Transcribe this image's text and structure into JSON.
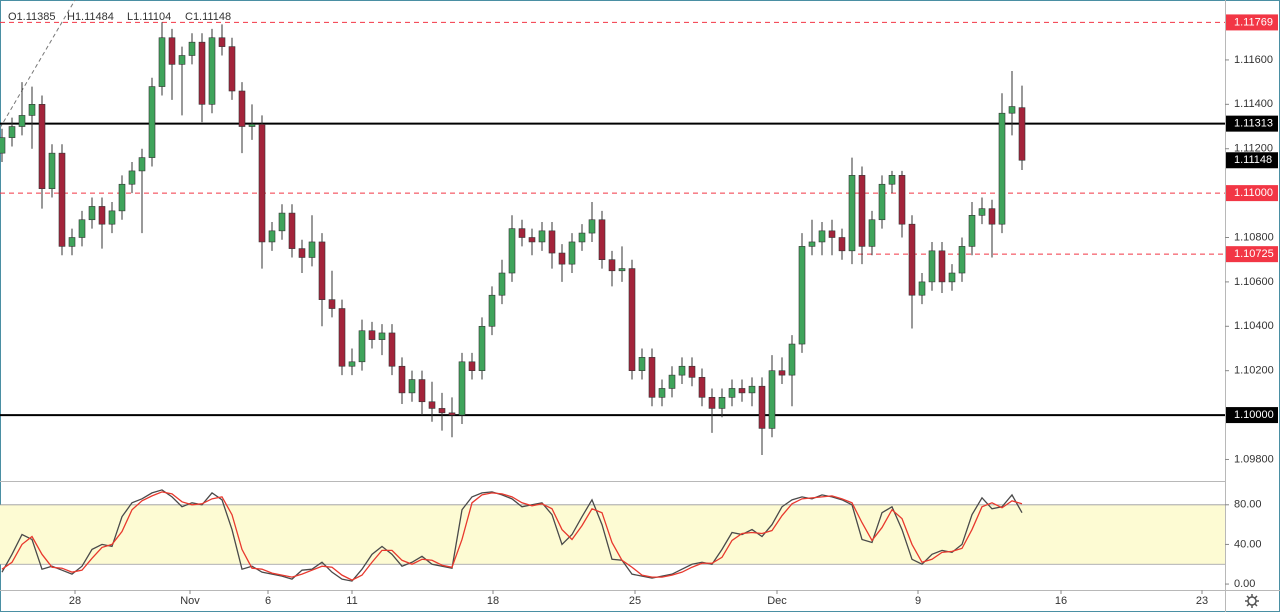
{
  "chart_data": {
    "type": "candlestick",
    "header": [
      "O1.11385",
      "H1.11484",
      "L1.11104",
      "C1.11148"
    ],
    "colors": {
      "up": "#3fa45b",
      "down": "#a3243b",
      "wick": "#333333"
    },
    "xlim": [
      -0.2,
      122.3
    ],
    "xticks": [
      {
        "value": 7.3,
        "label": "28"
      },
      {
        "value": 18.8,
        "label": "Nov"
      },
      {
        "value": 26.6,
        "label": "6"
      },
      {
        "value": 35,
        "label": "11"
      },
      {
        "value": 49.1,
        "label": "18"
      },
      {
        "value": 63.3,
        "label": "25"
      },
      {
        "value": 77.5,
        "label": "Dec"
      },
      {
        "value": 91.6,
        "label": "9"
      },
      {
        "value": 105.9,
        "label": "16"
      },
      {
        "value": 120,
        "label": "23"
      }
    ],
    "ylim": [
      1.09703,
      1.1187
    ],
    "yticks": [
      {
        "value": 1.098,
        "label": "1.09800"
      },
      {
        "value": 1.102,
        "label": "1.10200"
      },
      {
        "value": 1.104,
        "label": "1.10400"
      },
      {
        "value": 1.106,
        "label": "1.10600"
      },
      {
        "value": 1.108,
        "label": "1.10800"
      },
      {
        "value": 1.112,
        "label": "1.11200"
      },
      {
        "value": 1.114,
        "label": "1.11400"
      },
      {
        "value": 1.116,
        "label": "1.11600"
      }
    ],
    "levels": [
      {
        "value": 1.11769,
        "label": "1.11769",
        "color": "#f23645",
        "style": "dashed"
      },
      {
        "value": 1.11313,
        "label": "1.11313",
        "color": "#000000",
        "style": "solid"
      },
      {
        "value": 1.11,
        "label": "1.11000",
        "color": "#f23645",
        "style": "dashed"
      },
      {
        "value": 1.10725,
        "label": "1.10725",
        "color": "#f23645",
        "style": "dashed",
        "x_start": 85.6
      },
      {
        "value": 1.1,
        "label": "1.10000",
        "color": "#000000",
        "style": "solid"
      }
    ],
    "price_tag": {
      "value": 1.11148,
      "label": "1.11148",
      "color": "#000000"
    },
    "ohlc": [
      [
        1.1118,
        1.1129,
        1.1114,
        1.1125
      ],
      [
        1.1125,
        1.1134,
        1.1121,
        1.113
      ],
      [
        1.113,
        1.115,
        1.1126,
        1.1135
      ],
      [
        1.1135,
        1.1148,
        1.112,
        1.114
      ],
      [
        1.114,
        1.1144,
        1.1093,
        1.1102
      ],
      [
        1.1102,
        1.1122,
        1.1098,
        1.1118
      ],
      [
        1.1118,
        1.1122,
        1.1072,
        1.1076
      ],
      [
        1.1076,
        1.1084,
        1.1072,
        1.108
      ],
      [
        1.108,
        1.1092,
        1.1076,
        1.1088
      ],
      [
        1.1088,
        1.1098,
        1.1084,
        1.1094
      ],
      [
        1.1094,
        1.1098,
        1.1075,
        1.1086
      ],
      [
        1.1086,
        1.1096,
        1.1082,
        1.1092
      ],
      [
        1.1092,
        1.1108,
        1.1088,
        1.1104
      ],
      [
        1.1104,
        1.1114,
        1.11,
        1.111
      ],
      [
        1.111,
        1.112,
        1.1082,
        1.1116
      ],
      [
        1.1116,
        1.1152,
        1.1112,
        1.1148
      ],
      [
        1.1148,
        1.1177,
        1.1144,
        1.117
      ],
      [
        1.117,
        1.1174,
        1.1142,
        1.1158
      ],
      [
        1.1158,
        1.1166,
        1.1135,
        1.1162
      ],
      [
        1.1162,
        1.1172,
        1.1158,
        1.1168
      ],
      [
        1.1168,
        1.1172,
        1.1132,
        1.114
      ],
      [
        1.114,
        1.1174,
        1.1136,
        1.117
      ],
      [
        1.117,
        1.1176,
        1.1162,
        1.1166
      ],
      [
        1.1166,
        1.117,
        1.1142,
        1.1146
      ],
      [
        1.1146,
        1.115,
        1.1118,
        1.113
      ],
      [
        1.113,
        1.114,
        1.1124,
        1.1131
      ],
      [
        1.1131,
        1.1135,
        1.1066,
        1.1078
      ],
      [
        1.1078,
        1.1087,
        1.1074,
        1.1083
      ],
      [
        1.1083,
        1.1095,
        1.1079,
        1.1091
      ],
      [
        1.1091,
        1.1095,
        1.1071,
        1.1075
      ],
      [
        1.1075,
        1.1079,
        1.1064,
        1.1071
      ],
      [
        1.1071,
        1.109,
        1.1067,
        1.1078
      ],
      [
        1.1078,
        1.1082,
        1.104,
        1.1052
      ],
      [
        1.1052,
        1.1065,
        1.1044,
        1.1048
      ],
      [
        1.1048,
        1.1052,
        1.1018,
        1.1022
      ],
      [
        1.1022,
        1.103,
        1.1018,
        1.1024
      ],
      [
        1.1024,
        1.1043,
        1.102,
        1.1038
      ],
      [
        1.1038,
        1.1042,
        1.103,
        1.1034
      ],
      [
        1.1034,
        1.1041,
        1.1027,
        1.1037
      ],
      [
        1.1037,
        1.1041,
        1.1018,
        1.1022
      ],
      [
        1.1022,
        1.1026,
        1.1005,
        1.101
      ],
      [
        1.101,
        1.102,
        1.1006,
        1.1016
      ],
      [
        1.1016,
        1.102,
        1.1,
        1.1006
      ],
      [
        1.1006,
        1.1015,
        1.0997,
        1.1003
      ],
      [
        1.1003,
        1.101,
        1.0993,
        1.1001
      ],
      [
        1.1001,
        1.1008,
        1.099,
        1.1
      ],
      [
        1.1,
        1.1028,
        1.0996,
        1.1024
      ],
      [
        1.1024,
        1.1028,
        1.1016,
        1.102
      ],
      [
        1.102,
        1.1044,
        1.1016,
        1.104
      ],
      [
        1.104,
        1.1058,
        1.1036,
        1.1054
      ],
      [
        1.1054,
        1.107,
        1.105,
        1.1064
      ],
      [
        1.1064,
        1.109,
        1.106,
        1.1084
      ],
      [
        1.1084,
        1.1088,
        1.1076,
        1.108
      ],
      [
        1.108,
        1.1084,
        1.1072,
        1.1078
      ],
      [
        1.1078,
        1.1087,
        1.1074,
        1.1083
      ],
      [
        1.1083,
        1.1087,
        1.1066,
        1.1073
      ],
      [
        1.1073,
        1.1077,
        1.106,
        1.1068
      ],
      [
        1.1068,
        1.1082,
        1.1064,
        1.1078
      ],
      [
        1.1078,
        1.1086,
        1.1074,
        1.1082
      ],
      [
        1.1082,
        1.1096,
        1.1078,
        1.1088
      ],
      [
        1.1088,
        1.1092,
        1.1066,
        1.107
      ],
      [
        1.107,
        1.1074,
        1.1058,
        1.1065
      ],
      [
        1.1065,
        1.1076,
        1.106,
        1.1066
      ],
      [
        1.1066,
        1.107,
        1.1016,
        1.102
      ],
      [
        1.102,
        1.103,
        1.1016,
        1.1026
      ],
      [
        1.1026,
        1.103,
        1.1004,
        1.1008
      ],
      [
        1.1008,
        1.1016,
        1.1004,
        1.1012
      ],
      [
        1.1012,
        1.1022,
        1.1008,
        1.1018
      ],
      [
        1.1018,
        1.1026,
        1.1014,
        1.1022
      ],
      [
        1.1022,
        1.1026,
        1.1013,
        1.1017
      ],
      [
        1.1017,
        1.1021,
        1.1004,
        1.1008
      ],
      [
        1.1008,
        1.1012,
        1.0992,
        1.1003
      ],
      [
        1.1003,
        1.1012,
        1.0999,
        1.1008
      ],
      [
        1.1008,
        1.1016,
        1.1004,
        1.1012
      ],
      [
        1.1012,
        1.1016,
        1.1006,
        1.101
      ],
      [
        1.101,
        1.1017,
        1.1004,
        1.1013
      ],
      [
        1.1013,
        1.1017,
        1.0982,
        1.0994
      ],
      [
        1.0994,
        1.1027,
        1.099,
        1.102
      ],
      [
        1.102,
        1.1026,
        1.1014,
        1.1018
      ],
      [
        1.1018,
        1.1036,
        1.1004,
        1.1032
      ],
      [
        1.1032,
        1.1082,
        1.1028,
        1.1076
      ],
      [
        1.1076,
        1.1088,
        1.1072,
        1.1078
      ],
      [
        1.1078,
        1.1087,
        1.1072,
        1.1083
      ],
      [
        1.1083,
        1.1088,
        1.1072,
        1.108
      ],
      [
        1.108,
        1.1084,
        1.107,
        1.1074
      ],
      [
        1.1074,
        1.1116,
        1.1068,
        1.1108
      ],
      [
        1.1108,
        1.1112,
        1.1068,
        1.1076
      ],
      [
        1.1076,
        1.1092,
        1.1072,
        1.1088
      ],
      [
        1.1088,
        1.1108,
        1.1084,
        1.1104
      ],
      [
        1.1104,
        1.111,
        1.11,
        1.1108
      ],
      [
        1.1108,
        1.111,
        1.108,
        1.1086
      ],
      [
        1.1086,
        1.109,
        1.1039,
        1.1054
      ],
      [
        1.1054,
        1.1064,
        1.105,
        1.106
      ],
      [
        1.106,
        1.1078,
        1.1056,
        1.1074
      ],
      [
        1.1074,
        1.1078,
        1.1055,
        1.106
      ],
      [
        1.106,
        1.1068,
        1.1056,
        1.1064
      ],
      [
        1.1064,
        1.108,
        1.106,
        1.1076
      ],
      [
        1.1076,
        1.1096,
        1.1072,
        1.109
      ],
      [
        1.109,
        1.1098,
        1.1086,
        1.1093
      ],
      [
        1.1093,
        1.1097,
        1.1071,
        1.1086
      ],
      [
        1.1086,
        1.1145,
        1.1082,
        1.1136
      ],
      [
        1.1136,
        1.1155,
        1.1126,
        1.1139
      ],
      [
        1.11385,
        1.11484,
        1.11104,
        1.11148
      ]
    ],
    "oscillator": {
      "type": "line",
      "ylim": [
        -6,
        103
      ],
      "yticks": [
        {
          "value": 80,
          "label": "80.00"
        },
        {
          "value": 40,
          "label": "40.00"
        },
        {
          "value": 0,
          "label": "0.00"
        }
      ],
      "band": [
        20,
        80
      ],
      "band_color": "#fdfbd3",
      "series": [
        {
          "color": "#4a4a4a",
          "values": [
            12,
            30,
            50,
            45,
            15,
            18,
            14,
            10,
            18,
            35,
            40,
            38,
            68,
            82,
            86,
            92,
            95,
            88,
            78,
            82,
            80,
            92,
            85,
            55,
            15,
            18,
            12,
            10,
            8,
            5,
            14,
            15,
            22,
            12,
            5,
            3,
            15,
            30,
            38,
            30,
            18,
            22,
            28,
            20,
            18,
            16,
            75,
            88,
            92,
            93,
            90,
            86,
            78,
            80,
            82,
            70,
            40,
            50,
            68,
            85,
            60,
            25,
            24,
            10,
            8,
            6,
            8,
            10,
            15,
            20,
            22,
            20,
            35,
            52,
            50,
            55,
            48,
            60,
            78,
            85,
            88,
            86,
            90,
            88,
            85,
            80,
            45,
            42,
            72,
            78,
            55,
            25,
            20,
            30,
            34,
            32,
            40,
            70,
            87,
            76,
            78,
            90,
            72
          ]
        },
        {
          "color": "#e8392e",
          "values": [
            15,
            22,
            40,
            48,
            30,
            17,
            16,
            12,
            14,
            26,
            37,
            40,
            53,
            75,
            84,
            89,
            93,
            91,
            83,
            80,
            81,
            86,
            88,
            70,
            35,
            16,
            15,
            11,
            9,
            7,
            10,
            14,
            18,
            17,
            9,
            4,
            9,
            22,
            34,
            34,
            24,
            20,
            25,
            24,
            19,
            17,
            45,
            82,
            90,
            92,
            91,
            88,
            82,
            79,
            81,
            76,
            55,
            45,
            59,
            76,
            72,
            42,
            24,
            17,
            9,
            7,
            7,
            9,
            12,
            17,
            21,
            21,
            27,
            44,
            51,
            52,
            51,
            54,
            69,
            81,
            86,
            87,
            88,
            89,
            86,
            82,
            62,
            44,
            57,
            75,
            66,
            40,
            22,
            25,
            32,
            33,
            36,
            55,
            78,
            82,
            77,
            84,
            81
          ]
        }
      ]
    }
  }
}
